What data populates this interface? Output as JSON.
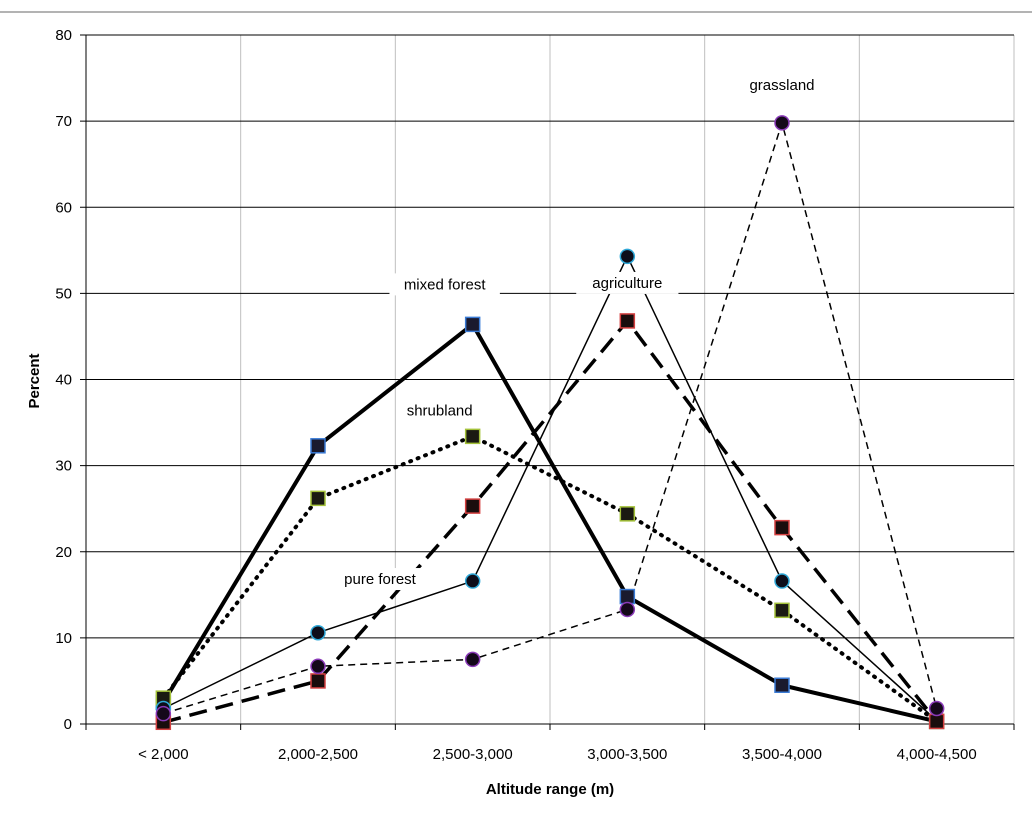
{
  "chart_data": {
    "type": "line",
    "title": "",
    "xlabel": "Altitude range (m)",
    "ylabel": "Percent",
    "ylim": [
      0,
      80
    ],
    "yticks": [
      0,
      10,
      20,
      30,
      40,
      50,
      60,
      70,
      80
    ],
    "grid": true,
    "legend": "none",
    "categories": [
      "<  2,000",
      "2,000-2,500",
      "2,500-3,000",
      "3,000-3,500",
      "3,500-4,000",
      "4,000-4,500"
    ],
    "annotations": [
      {
        "text": "grassland",
        "series": 4
      },
      {
        "text": "agriculture",
        "series": 3
      },
      {
        "text": "mixed forest",
        "series": 0
      },
      {
        "text": "shrubland",
        "series": 1
      },
      {
        "text": "pure forest",
        "series": 2
      }
    ],
    "series": [
      {
        "values": [
          2.5,
          32.3,
          46.4,
          14.8,
          4.5,
          0.3
        ],
        "line_style": "solid",
        "line_width": 4,
        "marker": "square",
        "marker_fill": "#1a1a2e",
        "marker_edge": "#3a7bd5"
      },
      {
        "values": [
          3.0,
          26.2,
          33.4,
          24.4,
          13.2,
          0.3
        ],
        "line_style": "dotted",
        "line_width": 4,
        "marker": "square",
        "marker_fill": "#1a1a12",
        "marker_edge": "#a4c23a"
      },
      {
        "values": [
          1.8,
          10.6,
          16.6,
          54.3,
          16.6,
          0.4
        ],
        "line_style": "solid",
        "line_width": 1.5,
        "marker": "circle",
        "marker_fill": "#0d0d1a",
        "marker_edge": "#2fa8d8"
      },
      {
        "values": [
          0.2,
          5.0,
          25.3,
          46.8,
          22.8,
          0.3
        ],
        "line_style": "dashed",
        "line_width": 3.5,
        "marker": "square",
        "marker_fill": "#1a0d0d",
        "marker_edge": "#d44040"
      },
      {
        "values": [
          1.2,
          6.7,
          7.5,
          13.3,
          69.8,
          1.8
        ],
        "line_style": "dashed-thin",
        "line_width": 1.5,
        "marker": "circle",
        "marker_fill": "#14081a",
        "marker_edge": "#8a3ab8"
      }
    ]
  }
}
